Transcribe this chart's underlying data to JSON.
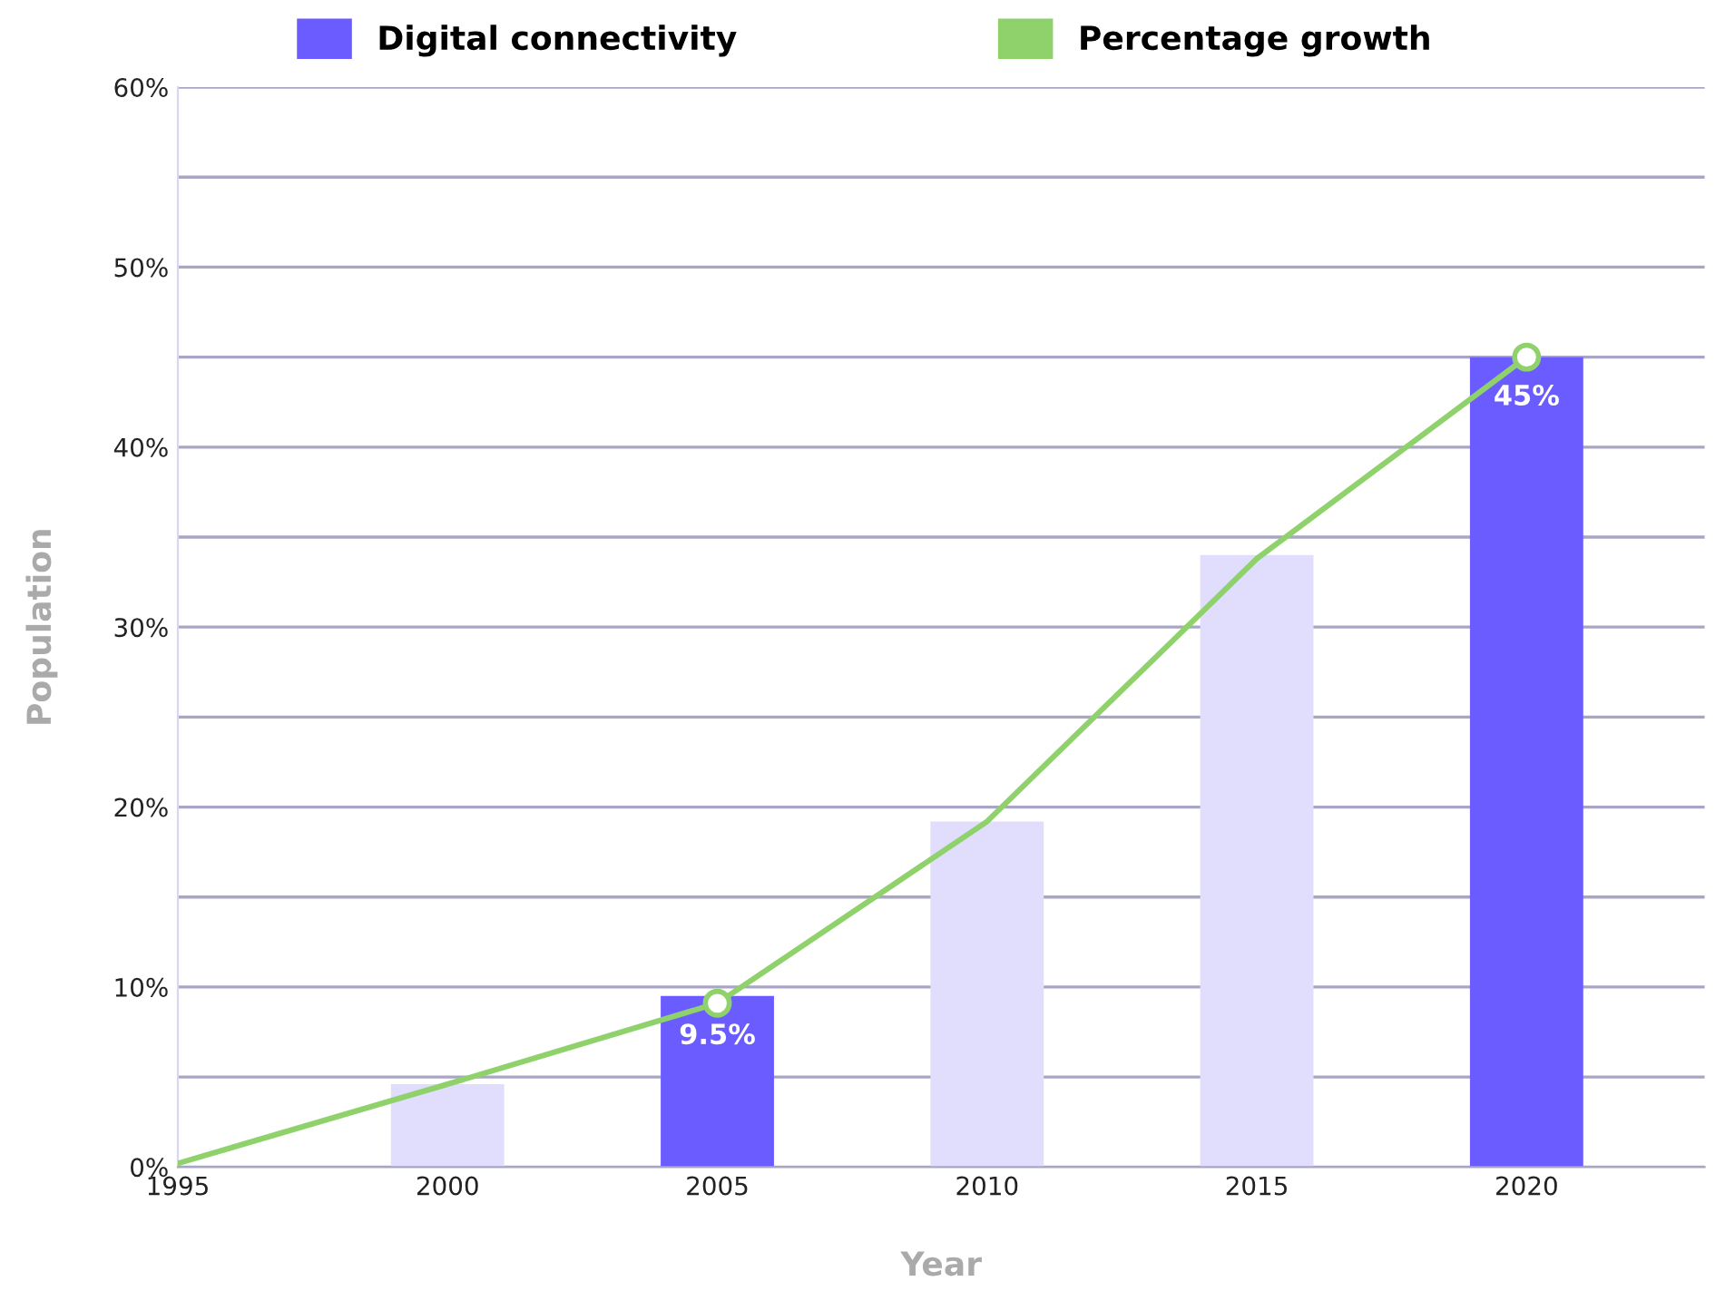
{
  "chart_data": {
    "type": "bar",
    "xlabel": "Year",
    "ylabel": "Population",
    "x": [
      2000,
      2005,
      2010,
      2015,
      2020
    ],
    "xlim": [
      1995,
      2023.3
    ],
    "xticks": [
      1995,
      2000,
      2005,
      2010,
      2015,
      2020
    ],
    "ylim": [
      0,
      60
    ],
    "yticks": [
      {
        "value": 0,
        "label": "0%"
      },
      {
        "value": 5,
        "label": null
      },
      {
        "value": 10,
        "label": "10%"
      },
      {
        "value": 15,
        "label": null
      },
      {
        "value": 20,
        "label": "20%"
      },
      {
        "value": 25,
        "label": null
      },
      {
        "value": 30,
        "label": "30%"
      },
      {
        "value": 35,
        "label": null
      },
      {
        "value": 40,
        "label": "40%"
      },
      {
        "value": 45,
        "label": null
      },
      {
        "value": 50,
        "label": "50%"
      },
      {
        "value": 55,
        "label": null
      },
      {
        "value": 60,
        "label": "60%"
      }
    ],
    "grid": "y",
    "legend": "top",
    "series": [
      {
        "name": "Digital connectivity",
        "color": "#6a5cff",
        "colors": [
          "#e0defc",
          "#6a5cff",
          "#e0defc",
          "#e0defc",
          "#6a5cff"
        ],
        "values": [
          4.6,
          9.5,
          19.2,
          34.0,
          45
        ],
        "value_labels": [
          null,
          "9.5%",
          null,
          null,
          "45%"
        ]
      },
      {
        "name": "Percentage growth",
        "type": "line",
        "color": "#8fd16a",
        "x": [
          1995,
          2000,
          2005,
          2010,
          2015,
          2020
        ],
        "values": [
          0.2,
          4.6,
          9.1,
          19.2,
          33.8,
          45
        ],
        "marker": "none"
      },
      {
        "type": "scatter",
        "color": "#8fd16a",
        "x": [
          2005,
          2020
        ],
        "values": [
          9.1,
          45
        ],
        "marker": "circle"
      }
    ]
  }
}
